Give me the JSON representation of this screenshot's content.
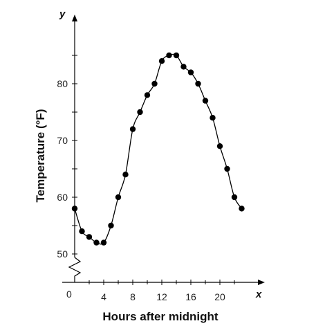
{
  "chart_data": {
    "type": "line",
    "xlabel": "Hours after midnight",
    "ylabel": "Temperature (°F)",
    "x_axis_letter": "x",
    "y_axis_letter": "y",
    "origin_label": "0",
    "xlim": [
      0,
      24
    ],
    "ylim": [
      45,
      90
    ],
    "y_axis_break": true,
    "grid": false,
    "xticks": [
      4,
      8,
      12,
      16,
      20
    ],
    "xtick_labels": [
      "4",
      "8",
      "12",
      "16",
      "20"
    ],
    "yticks": [
      50,
      60,
      70,
      80
    ],
    "ytick_labels": [
      "50",
      "60",
      "70",
      "80"
    ],
    "series": [
      {
        "x": [
          0,
          1,
          2,
          3,
          4,
          5,
          6,
          7,
          8,
          9,
          10,
          11,
          12,
          13,
          14,
          15,
          16,
          17,
          18,
          19,
          20,
          21,
          22,
          23
        ],
        "y": [
          58,
          54,
          53,
          52,
          52,
          55,
          60,
          64,
          72,
          75,
          78,
          80,
          84,
          85,
          85,
          83,
          82,
          80,
          77,
          74,
          69,
          65,
          60,
          58
        ]
      }
    ]
  }
}
